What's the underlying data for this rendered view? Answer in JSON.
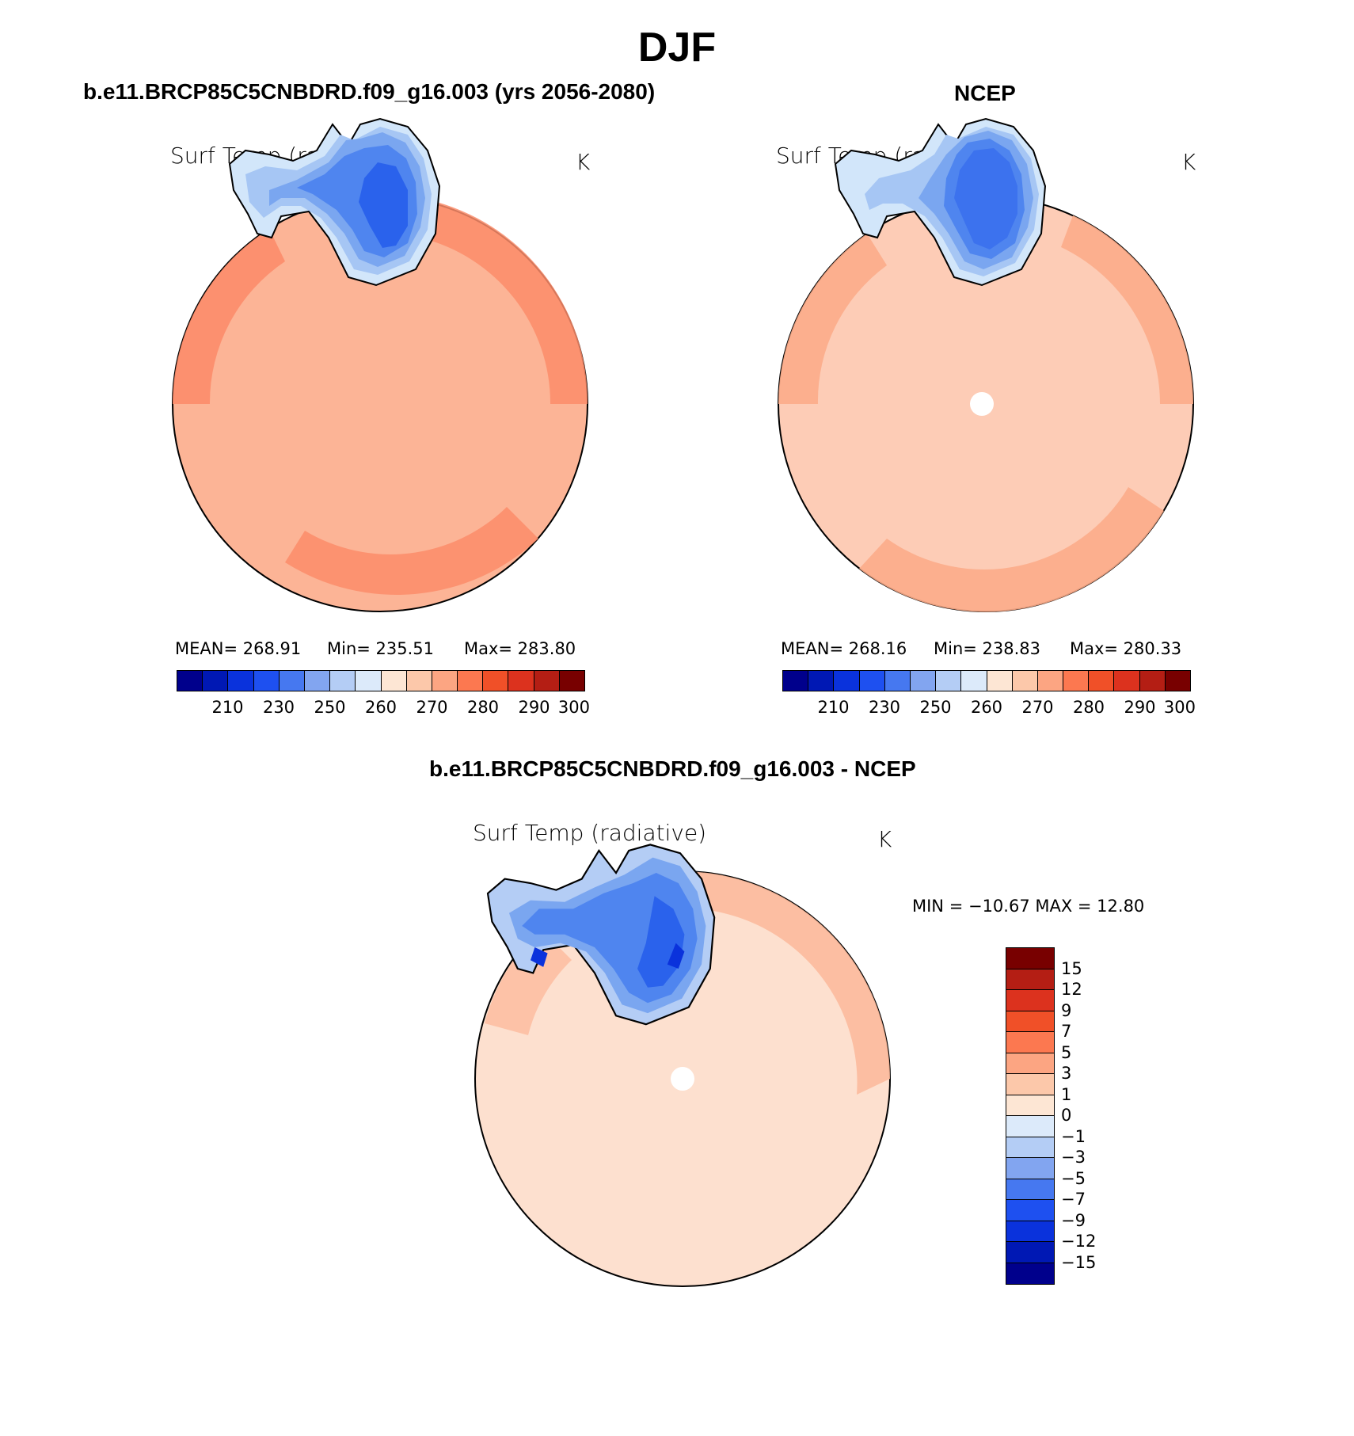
{
  "figure": {
    "title": "DJF"
  },
  "panels": [
    {
      "title": "b.e11.BRCP85C5CNBDRD.f09_g16.003 (yrs 2056-2080)",
      "variable": "Surf Temp (radiative)",
      "units": "K",
      "mean": "MEAN=  268.91",
      "min": "Min=  235.51",
      "max": "Max=  283.80",
      "ocean_color": "#fcb496",
      "ring_color": "#fc8c6a",
      "land_colors": [
        "#d2e6fa",
        "#a6c6f4",
        "#7aa6f0",
        "#4f85ef",
        "#2a62ec"
      ]
    },
    {
      "title": "NCEP",
      "variable": "Surf Temp (radiative)",
      "units": "K",
      "mean": "MEAN=  268.16",
      "min": "Min=  238.83",
      "max": "Max=  280.33",
      "ocean_color": "#fdccb6",
      "ring_color": "#fcac8a",
      "land_colors": [
        "#d2e6fa",
        "#a6c6f4",
        "#7aa6f0",
        "#4f85ef",
        "#3c72ee"
      ]
    }
  ],
  "abs_colorbar": {
    "colors": [
      "#00008c",
      "#0018b4",
      "#0a32dc",
      "#1e50f0",
      "#4678f0",
      "#82a5f0",
      "#b4cdf5",
      "#dceafa",
      "#fde6d4",
      "#fcc8aa",
      "#fca582",
      "#fc7850",
      "#f05028",
      "#dc321e",
      "#b41e14",
      "#780000"
    ],
    "tick_labels": [
      "210",
      "230",
      "250",
      "260",
      "270",
      "280",
      "290",
      "300"
    ]
  },
  "diff_panel": {
    "title": "b.e11.BRCP85C5CNBDRD.f09_g16.003 - NCEP",
    "variable": "Surf Temp (radiative)",
    "units": "K",
    "minmax": "MIN = −10.67  MAX =   12.80",
    "ocean_color": "#fde0cf",
    "warm_color": "#fcba9c",
    "land_colors": [
      "#b4cdf5",
      "#7aa6f0",
      "#4f85ef",
      "#2a62ec",
      "#0a32dc"
    ]
  },
  "diff_colorbar": {
    "colors": [
      "#780000",
      "#b41e14",
      "#dc321e",
      "#f05028",
      "#fc7850",
      "#fca582",
      "#fcc8aa",
      "#fde6d4",
      "#dceafa",
      "#b4cdf5",
      "#82a5f0",
      "#4678f0",
      "#1e50f0",
      "#0a32dc",
      "#0018b4",
      "#00008c"
    ],
    "tick_labels": [
      "15",
      "12",
      "9",
      "7",
      "5",
      "3",
      "1",
      "0",
      "−1",
      "−3",
      "−5",
      "−7",
      "−9",
      "−12",
      "−15"
    ]
  }
}
